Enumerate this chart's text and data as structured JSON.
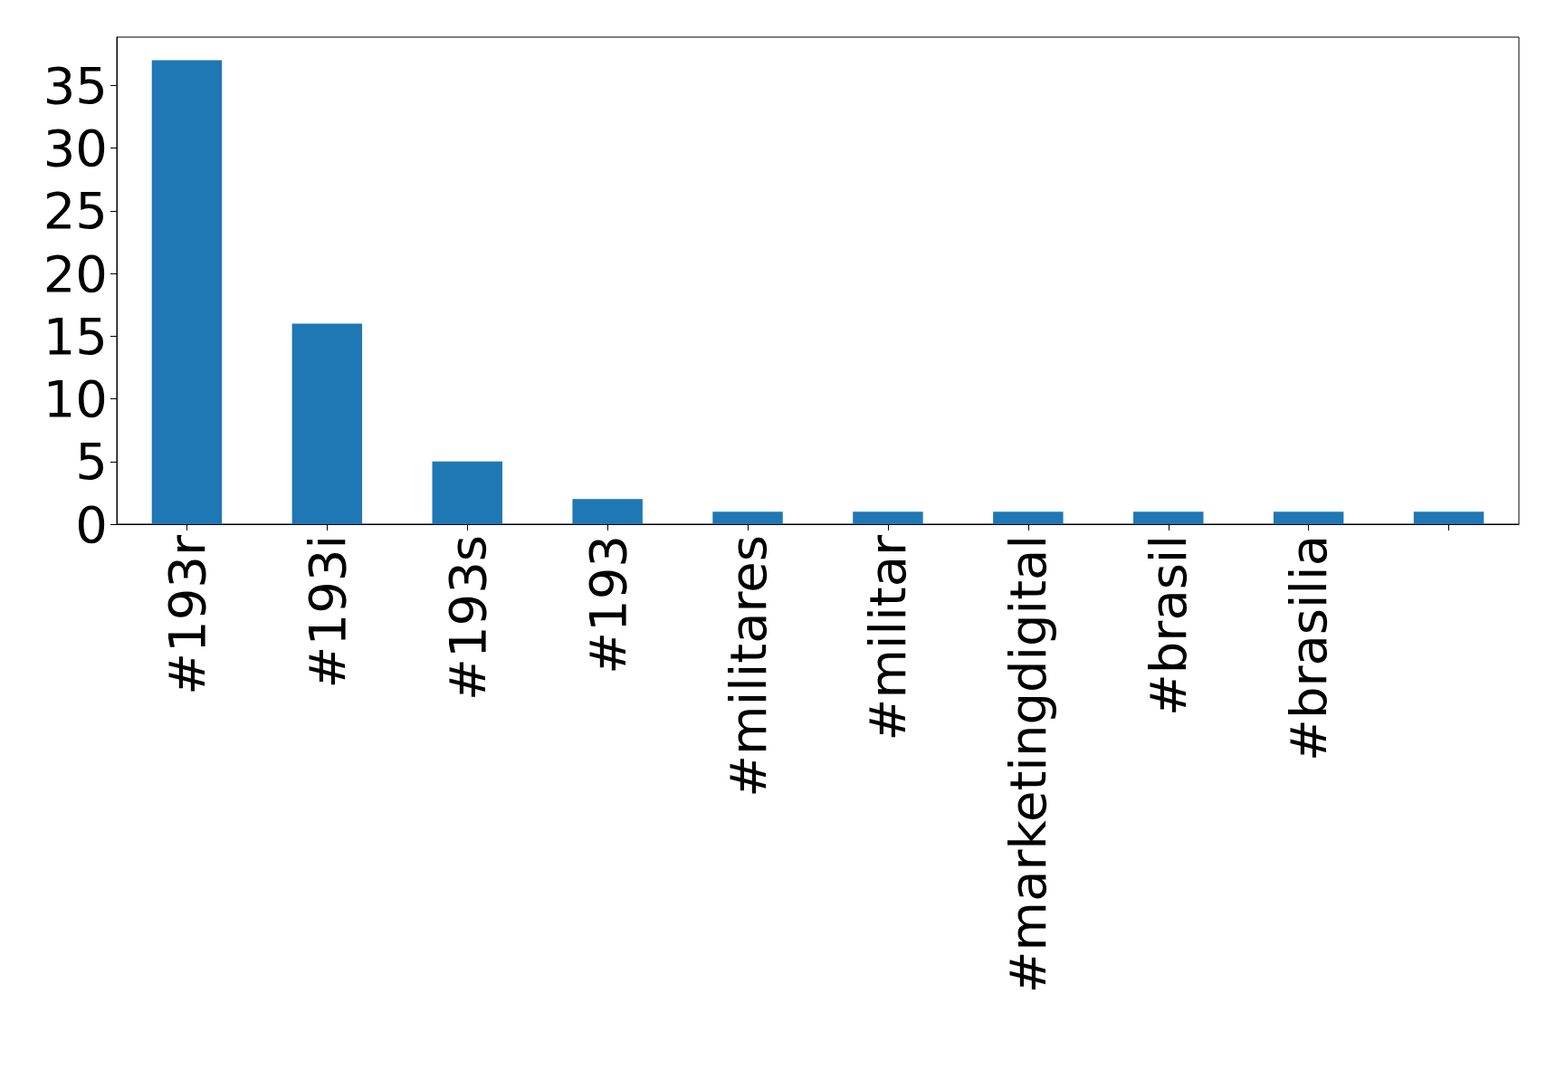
{
  "chart_data": {
    "type": "bar",
    "categories": [
      "#193r",
      "#193i",
      "#193s",
      "#193",
      "#militares",
      "#militar",
      "#marketingdigital",
      "#brasil",
      "#brasilia",
      null
    ],
    "values": [
      37,
      16,
      5,
      2,
      1,
      1,
      1,
      1,
      1,
      1
    ],
    "color": "#1f77b4",
    "ylim": [
      0,
      38.85
    ],
    "yticks": [
      0,
      5,
      10,
      15,
      20,
      25,
      30,
      35
    ],
    "grid": false
  }
}
